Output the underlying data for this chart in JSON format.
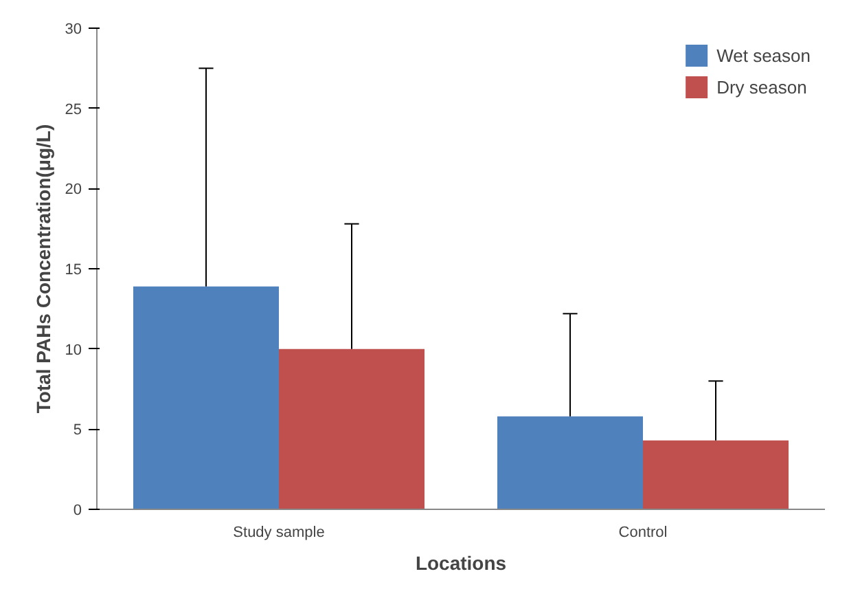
{
  "chart_data": {
    "type": "bar",
    "xlabel": "Locations",
    "ylabel": "Total PAHs Concentration(μg/L)",
    "categories": [
      "Study sample",
      "Control"
    ],
    "series": [
      {
        "name": "Wet season",
        "color": "#4f81bd",
        "values": [
          13.9,
          5.8
        ],
        "errors": [
          [
            13.9,
            27.5
          ],
          [
            5.8,
            12.2
          ]
        ]
      },
      {
        "name": "Dry season",
        "color": "#c0504d",
        "values": [
          10.0,
          4.3
        ],
        "errors": [
          [
            10.0,
            17.8
          ],
          [
            4.3,
            8.0
          ]
        ]
      }
    ],
    "ylim": [
      0,
      30
    ],
    "yticks": [
      0,
      5,
      10,
      15,
      20,
      25,
      30
    ],
    "grid": false,
    "legend": "top right"
  }
}
